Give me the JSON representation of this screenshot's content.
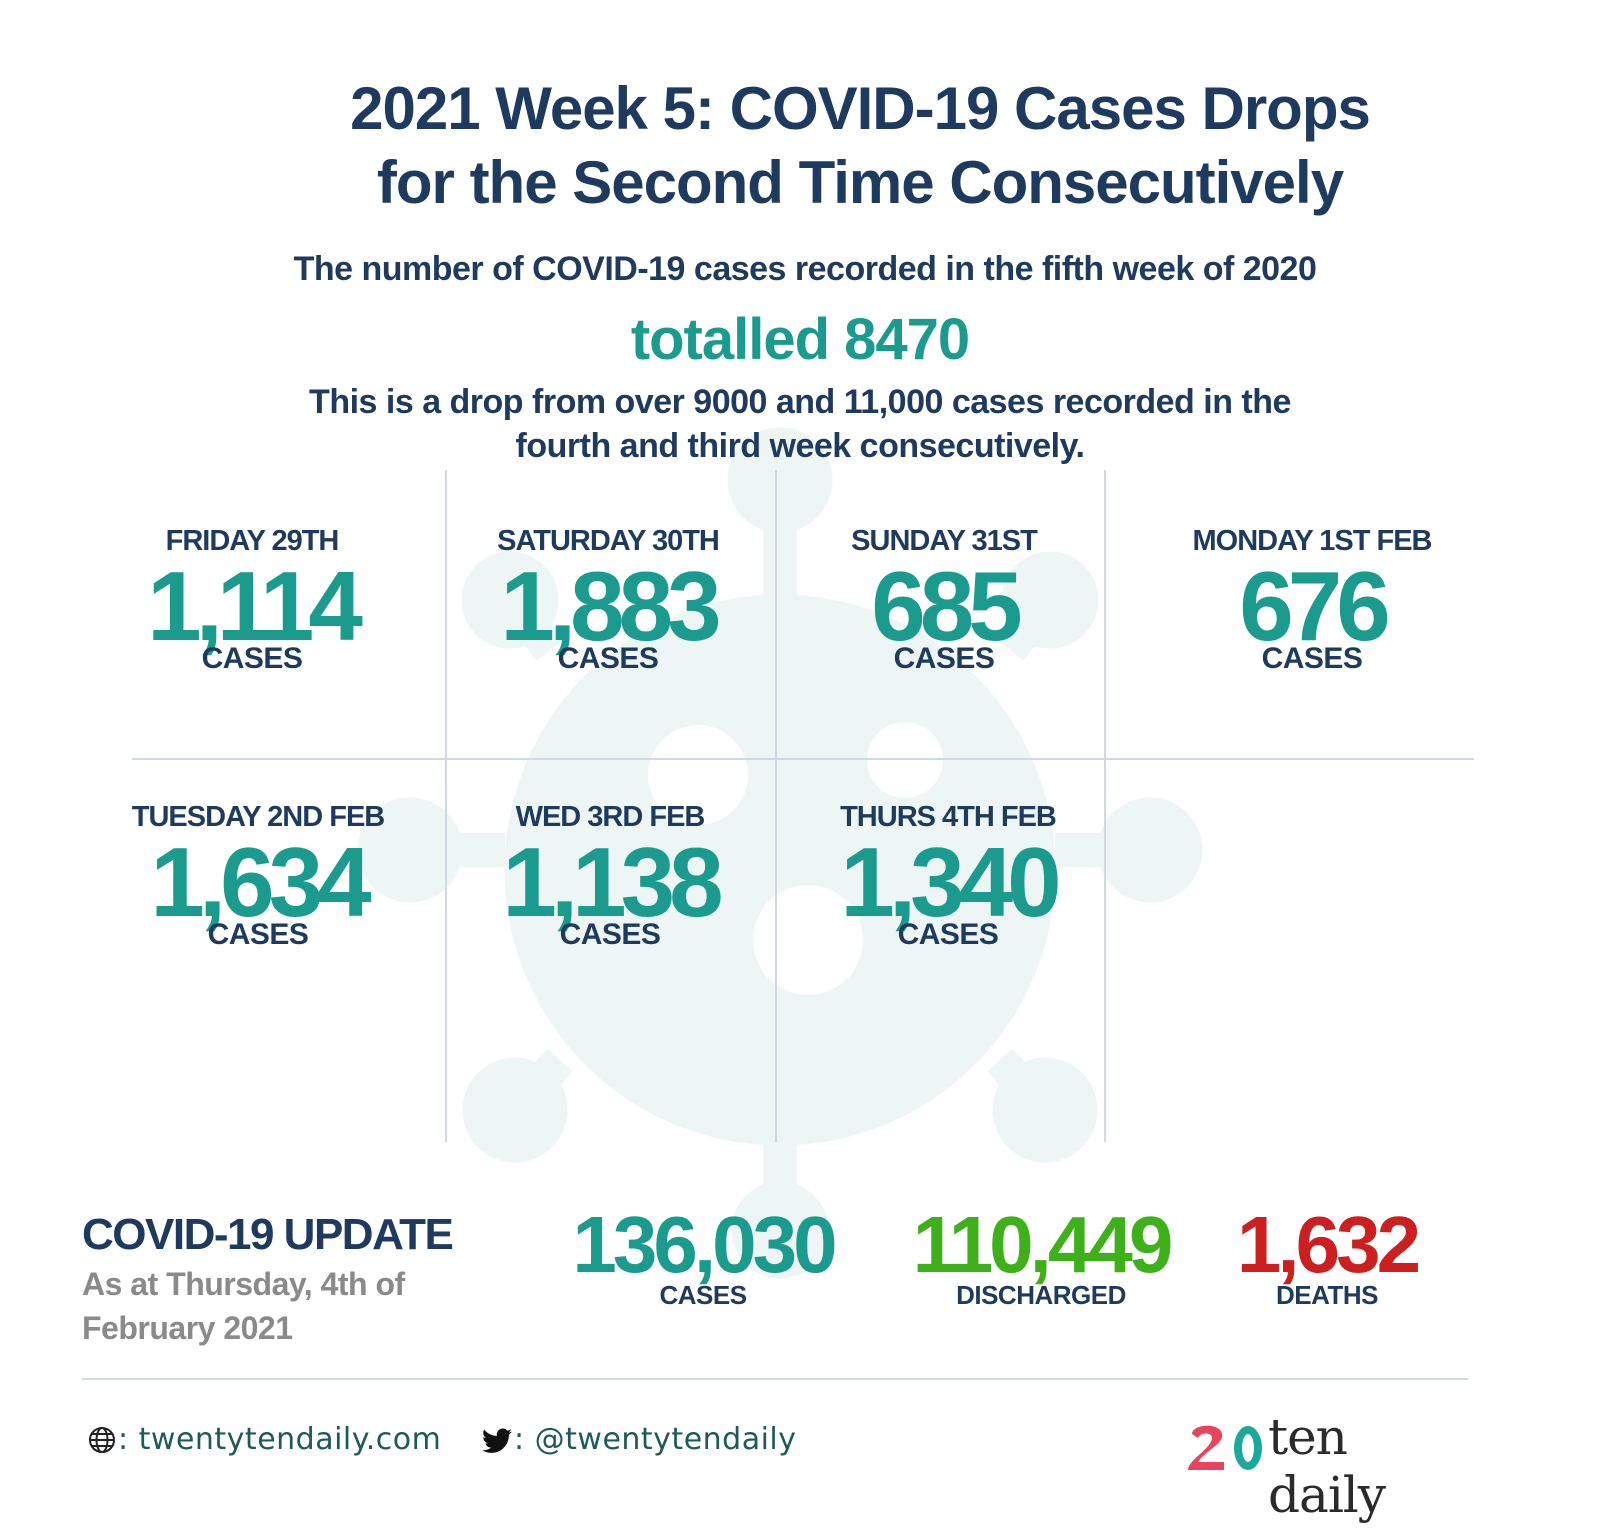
{
  "header": {
    "title_line1": "2021 Week 5: COVID-19 Cases Drops",
    "title_line2": "for the Second Time Consecutively",
    "subtitle": "The number of COVID-19 cases recorded in the fifth week of 2020",
    "total": "totalled 8470",
    "note_line1": "This is a drop from over 9000 and 11,000 cases recorded in the",
    "note_line2": "fourth and third week consecutively."
  },
  "days": [
    {
      "day": "FRIDAY 29TH",
      "value": "1,114",
      "unit": "CASES"
    },
    {
      "day": "SATURDAY 30TH",
      "value": "1,883",
      "unit": "CASES"
    },
    {
      "day": "SUNDAY 31ST",
      "value": "685",
      "unit": "CASES"
    },
    {
      "day": "MONDAY 1ST FEB",
      "value": "676",
      "unit": "CASES"
    },
    {
      "day": "TUESDAY 2ND FEB",
      "value": "1,634",
      "unit": "CASES"
    },
    {
      "day": "WED 3RD FEB",
      "value": "1,138",
      "unit": "CASES"
    },
    {
      "day": "THURS 4TH FEB",
      "value": "1,340",
      "unit": "CASES"
    }
  ],
  "update": {
    "title": "COVID-19 UPDATE",
    "as_at": "As at Thursday, 4th of February 2021",
    "cases": {
      "value": "136,030",
      "label": "CASES"
    },
    "discharged": {
      "value": "110,449",
      "label": "DISCHARGED"
    },
    "deaths": {
      "value": "1,632",
      "label": "DEATHS"
    }
  },
  "footer": {
    "website": ": twentytendaily.com",
    "twitter": ": @twentytendaily",
    "logo_text": "ten daily",
    "globe_icon": "globe-icon",
    "twitter_icon": "twitter-bird-icon"
  },
  "colors": {
    "navy": "#1e3a5f",
    "teal": "#1a9b8e",
    "green": "#3db01a",
    "red": "#cc1f1f",
    "gray": "#8a8a8a",
    "grid": "#cfd9e3",
    "watermark": "#eef6f5",
    "logo_pink": "#e8435f",
    "logo_teal": "#1aa99a"
  }
}
